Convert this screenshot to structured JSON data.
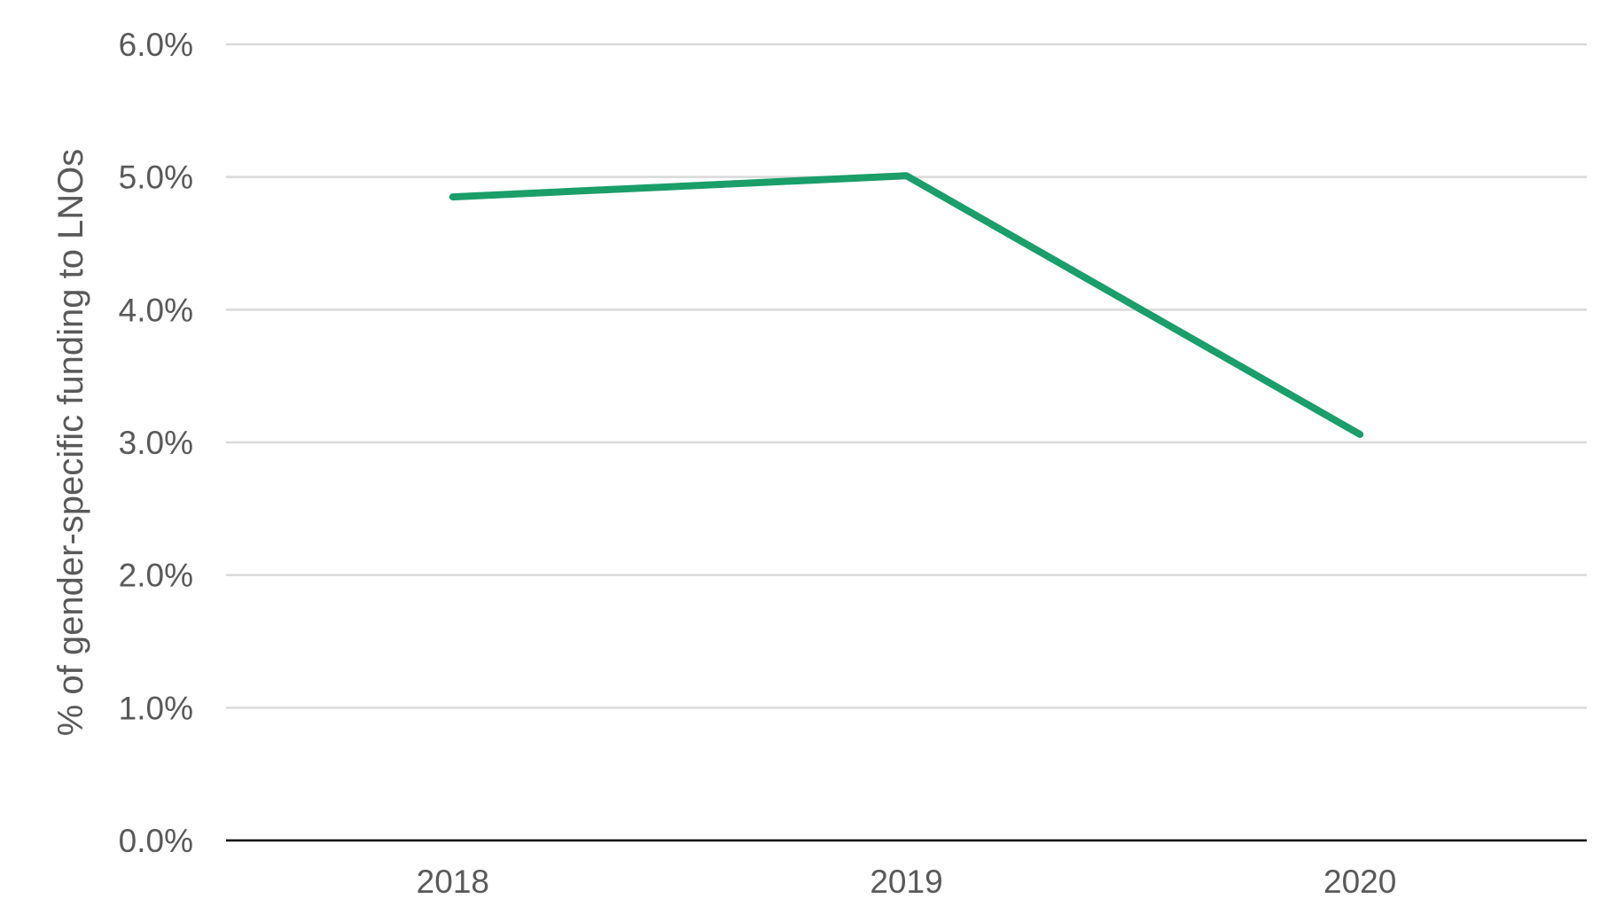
{
  "chart_data": {
    "type": "line",
    "x": [
      "2018",
      "2019",
      "2020"
    ],
    "series": [
      {
        "values": [
          4.85,
          5.01,
          3.06
        ]
      }
    ],
    "xlabel": "",
    "ylabel": "% of gender-specific funding to LNOs",
    "ylim": [
      0,
      6
    ],
    "yticks": [
      0,
      1,
      2,
      3,
      4,
      5,
      6
    ],
    "ytick_labels": [
      "0.0%",
      "1.0%",
      "2.0%",
      "3.0%",
      "4.0%",
      "5.0%",
      "6.0%"
    ],
    "grid": true,
    "legend": "none",
    "colors": {
      "series": "#1a9e6a",
      "grid": "#d9d9d9",
      "axis": "#000000",
      "text": "#595959"
    }
  }
}
